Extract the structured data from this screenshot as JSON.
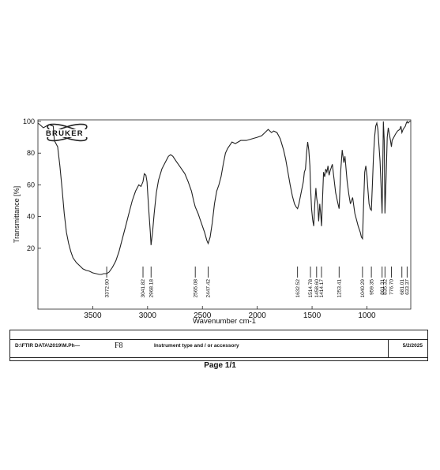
{
  "chart_data": {
    "type": "line",
    "brand": "BRUKER",
    "xlabel": "Wavenumber cm-1",
    "ylabel": "Transmittance [%]",
    "xlim": [
      4000,
      600
    ],
    "ylim": [
      0,
      100
    ],
    "x_ticks": [
      3500,
      3000,
      2500,
      2000,
      1500,
      1000
    ],
    "y_ticks": [
      20,
      40,
      60,
      80,
      100
    ],
    "peak_labels": [
      "3372.90",
      "3041.82",
      "2968.18",
      "2565.08",
      "2447.42",
      "1632.52",
      "1514.78",
      "1458.60",
      "1414.17",
      "1253.41",
      "1040.29",
      "959.35",
      "861.31",
      "835.32",
      "776.70",
      "681.01",
      "633.37"
    ],
    "peak_positions": [
      3372.9,
      3041.82,
      2968.18,
      2565.08,
      2447.42,
      1632.52,
      1514.78,
      1458.6,
      1414.17,
      1253.41,
      1040.29,
      959.35,
      861.31,
      835.32,
      776.7,
      681.01,
      633.37
    ],
    "spectrum": [
      [
        4000,
        99
      ],
      [
        3950,
        96
      ],
      [
        3900,
        98
      ],
      [
        3860,
        97
      ],
      [
        3850,
        88
      ],
      [
        3820,
        84
      ],
      [
        3800,
        72
      ],
      [
        3780,
        58
      ],
      [
        3760,
        42
      ],
      [
        3740,
        30
      ],
      [
        3720,
        23
      ],
      [
        3700,
        18
      ],
      [
        3680,
        14
      ],
      [
        3650,
        11
      ],
      [
        3620,
        9
      ],
      [
        3590,
        7
      ],
      [
        3560,
        6
      ],
      [
        3530,
        5.5
      ],
      [
        3500,
        4.5
      ],
      [
        3470,
        4
      ],
      [
        3440,
        3.5
      ],
      [
        3420,
        3.5
      ],
      [
        3400,
        4
      ],
      [
        3372.9,
        4
      ],
      [
        3350,
        5
      ],
      [
        3320,
        8
      ],
      [
        3290,
        12
      ],
      [
        3260,
        18
      ],
      [
        3230,
        26
      ],
      [
        3200,
        34
      ],
      [
        3170,
        42
      ],
      [
        3140,
        50
      ],
      [
        3110,
        56
      ],
      [
        3080,
        60
      ],
      [
        3060,
        59
      ],
      [
        3041.82,
        62
      ],
      [
        3030,
        67
      ],
      [
        3015,
        66
      ],
      [
        3005,
        62
      ],
      [
        2990,
        45
      ],
      [
        2975,
        30
      ],
      [
        2968.18,
        22
      ],
      [
        2955,
        30
      ],
      [
        2940,
        42
      ],
      [
        2920,
        55
      ],
      [
        2900,
        63
      ],
      [
        2870,
        70
      ],
      [
        2840,
        74
      ],
      [
        2810,
        78
      ],
      [
        2790,
        79
      ],
      [
        2770,
        78
      ],
      [
        2740,
        75
      ],
      [
        2700,
        71
      ],
      [
        2660,
        67
      ],
      [
        2630,
        62
      ],
      [
        2600,
        56
      ],
      [
        2580,
        50
      ],
      [
        2565.08,
        46
      ],
      [
        2540,
        42
      ],
      [
        2510,
        36
      ],
      [
        2480,
        30
      ],
      [
        2460,
        25
      ],
      [
        2447.42,
        23
      ],
      [
        2430,
        27
      ],
      [
        2410,
        36
      ],
      [
        2390,
        48
      ],
      [
        2370,
        56
      ],
      [
        2350,
        60
      ],
      [
        2330,
        65
      ],
      [
        2310,
        73
      ],
      [
        2290,
        80
      ],
      [
        2270,
        83
      ],
      [
        2250,
        85
      ],
      [
        2230,
        87
      ],
      [
        2200,
        86
      ],
      [
        2150,
        88
      ],
      [
        2100,
        88
      ],
      [
        2050,
        89
      ],
      [
        2000,
        90
      ],
      [
        1960,
        91
      ],
      [
        1930,
        93
      ],
      [
        1900,
        95
      ],
      [
        1870,
        93
      ],
      [
        1850,
        94
      ],
      [
        1820,
        93
      ],
      [
        1790,
        89
      ],
      [
        1760,
        82
      ],
      [
        1740,
        76
      ],
      [
        1720,
        68
      ],
      [
        1700,
        60
      ],
      [
        1680,
        53
      ],
      [
        1660,
        48
      ],
      [
        1645,
        46
      ],
      [
        1632.52,
        45
      ],
      [
        1620,
        48
      ],
      [
        1600,
        55
      ],
      [
        1580,
        62
      ],
      [
        1570,
        68
      ],
      [
        1560,
        70
      ],
      [
        1550,
        80
      ],
      [
        1540,
        87
      ],
      [
        1530,
        82
      ],
      [
        1520,
        72
      ],
      [
        1514.78,
        60
      ],
      [
        1505,
        45
      ],
      [
        1495,
        38
      ],
      [
        1485,
        34
      ],
      [
        1475,
        48
      ],
      [
        1465,
        58
      ],
      [
        1458.6,
        52
      ],
      [
        1448,
        47
      ],
      [
        1440,
        37
      ],
      [
        1430,
        48
      ],
      [
        1420,
        40
      ],
      [
        1414.17,
        34
      ],
      [
        1405,
        50
      ],
      [
        1395,
        68
      ],
      [
        1385,
        65
      ],
      [
        1375,
        70
      ],
      [
        1365,
        68
      ],
      [
        1355,
        72
      ],
      [
        1345,
        66
      ],
      [
        1335,
        69
      ],
      [
        1325,
        71
      ],
      [
        1315,
        73
      ],
      [
        1300,
        64
      ],
      [
        1285,
        55
      ],
      [
        1270,
        50
      ],
      [
        1253.41,
        45
      ],
      [
        1240,
        68
      ],
      [
        1225,
        82
      ],
      [
        1210,
        74
      ],
      [
        1200,
        78
      ],
      [
        1180,
        62
      ],
      [
        1165,
        54
      ],
      [
        1150,
        48
      ],
      [
        1130,
        52
      ],
      [
        1110,
        42
      ],
      [
        1095,
        38
      ],
      [
        1080,
        34
      ],
      [
        1060,
        30
      ],
      [
        1050,
        27
      ],
      [
        1040.29,
        26
      ],
      [
        1030,
        48
      ],
      [
        1020,
        68
      ],
      [
        1010,
        72
      ],
      [
        1000,
        66
      ],
      [
        990,
        56
      ],
      [
        980,
        48
      ],
      [
        970,
        45
      ],
      [
        959.35,
        44
      ],
      [
        950,
        60
      ],
      [
        940,
        78
      ],
      [
        930,
        90
      ],
      [
        920,
        97
      ],
      [
        910,
        99
      ],
      [
        900,
        95
      ],
      [
        890,
        85
      ],
      [
        880,
        75
      ],
      [
        870,
        58
      ],
      [
        861.31,
        42
      ],
      [
        855,
        72
      ],
      [
        850,
        100
      ],
      [
        842,
        88
      ],
      [
        835.32,
        42
      ],
      [
        825,
        65
      ],
      [
        815,
        90
      ],
      [
        805,
        96
      ],
      [
        795,
        92
      ],
      [
        785,
        88
      ],
      [
        776.7,
        84
      ],
      [
        770,
        88
      ],
      [
        755,
        90
      ],
      [
        740,
        92
      ],
      [
        720,
        94
      ],
      [
        700,
        95
      ],
      [
        690,
        97
      ],
      [
        681.01,
        93
      ],
      [
        670,
        95
      ],
      [
        650,
        97
      ],
      [
        640,
        99
      ],
      [
        633.37,
        100
      ],
      [
        625,
        99
      ],
      [
        610,
        100
      ],
      [
        600,
        100
      ]
    ]
  },
  "footer": {
    "path": "D:\\FTIR DATA\\2019\\M.Ph—",
    "sample": "F8",
    "instrument": "Instrument type and / or accessory",
    "date": "5/2/2025"
  },
  "page_label": "Page 1/1"
}
